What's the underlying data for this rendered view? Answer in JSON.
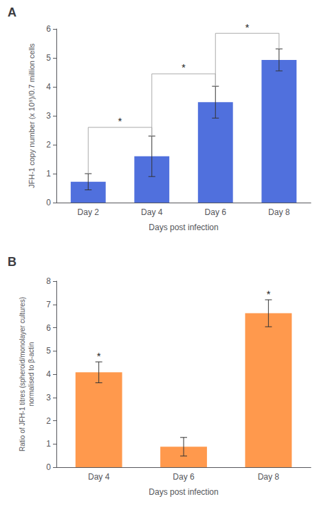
{
  "chart_data": [
    {
      "type": "bar",
      "title": "A",
      "categories": [
        "Day 2",
        "Day 4",
        "Day 6",
        "Day 8"
      ],
      "values": [
        0.72,
        1.6,
        3.47,
        4.93
      ],
      "errors": [
        0.28,
        0.7,
        0.55,
        0.38
      ],
      "ylabel": "JFH-1 copy number (x 10⁸)/0.7 million cells",
      "xlabel": "Days post infection",
      "ylim": [
        0,
        6
      ],
      "yticks": [
        0,
        1,
        2,
        3,
        4,
        5,
        6
      ],
      "grid": false,
      "annotations": [
        {
          "text": "*",
          "from": "Day 2",
          "to": "Day 4",
          "y": 2.6,
          "text_y": 2.65
        },
        {
          "text": "*",
          "from": "Day 4",
          "to": "Day 6",
          "y": 4.45,
          "text_y": 4.5
        },
        {
          "text": "*",
          "from": "Day 6",
          "to": "Day 8",
          "y": 5.85,
          "text_y": 5.88
        }
      ]
    },
    {
      "type": "bar",
      "title": "B",
      "categories": [
        "Day 4",
        "Day 6",
        "Day 8"
      ],
      "values": [
        4.08,
        0.88,
        6.62
      ],
      "errors": [
        0.45,
        0.4,
        0.58
      ],
      "ylabel": "Ratio of JFH-1 titres (spheroid/monolayer cultures)\nnormalised to β-actin",
      "xlabel": "Days post infection",
      "ylim": [
        0,
        8
      ],
      "yticks": [
        0,
        1,
        2,
        3,
        4,
        5,
        6,
        7,
        8
      ],
      "grid": false,
      "annotations": [
        {
          "text": "*",
          "at": "Day 4",
          "y": 4.55
        },
        {
          "text": "*",
          "at": "Day 8",
          "y": 7.22
        }
      ]
    }
  ]
}
